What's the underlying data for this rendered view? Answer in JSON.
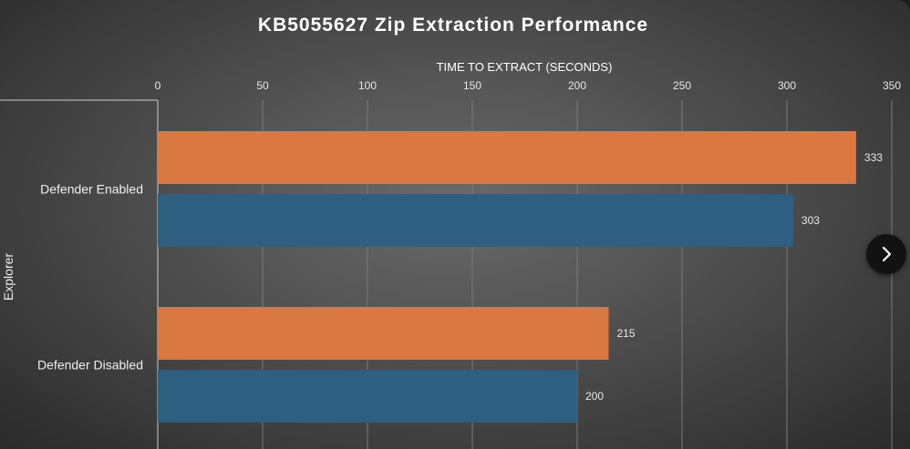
{
  "chart_data": {
    "type": "bar",
    "orientation": "horizontal",
    "title": "KB5055627 Zip Extraction Performance",
    "xlabel": "TIME TO EXTRACT (SECONDS)",
    "group_label": "Explorer",
    "xlim": [
      0,
      350
    ],
    "xticks": [
      0,
      50,
      100,
      150,
      200,
      250,
      300,
      350
    ],
    "grid": true,
    "axis_position": "top",
    "categories": [
      "Defender Enabled",
      "Defender Disabled"
    ],
    "series": [
      {
        "color": "#d97841",
        "values": [
          333,
          215
        ]
      },
      {
        "color": "#2e5f80",
        "values": [
          303,
          200
        ]
      }
    ]
  },
  "controls": {
    "next_icon": "chevron-right-icon"
  }
}
